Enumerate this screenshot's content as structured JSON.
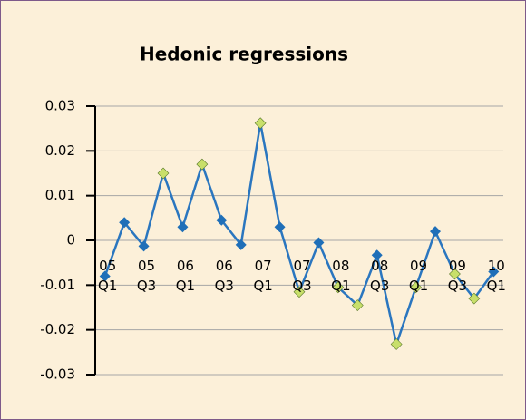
{
  "chart_data": {
    "type": "line",
    "title": "Hedonic regressions",
    "categories": [
      "05 Q1",
      null,
      "05 Q3",
      null,
      "06 Q1",
      null,
      "06 Q3",
      null,
      "07 Q1",
      null,
      "07 Q3",
      null,
      "08 Q1",
      null,
      "08 Q3",
      null,
      "09 Q1",
      null,
      "09 Q3",
      null,
      "10 Q1"
    ],
    "series": [
      {
        "color": "#2a76bf",
        "marker_colors": [
          "#1f6fb8",
          "#1f6fb8",
          "#1f6fb8",
          "#c8df6a",
          "#1f6fb8",
          "#c8df6a",
          "#1f6fb8",
          "#1f6fb8",
          "#c8df6a",
          "#1f6fb8",
          "#c8df6a",
          "#1f6fb8",
          "#c8df6a",
          "#c8df6a",
          "#1f6fb8",
          "#c8df6a",
          "#c8df6a",
          "#1f6fb8",
          "#c8df6a",
          "#c8df6a",
          "#1f6fb8"
        ],
        "values": [
          -0.008,
          0.004,
          -0.0013,
          0.015,
          0.003,
          0.017,
          0.0045,
          -0.001,
          0.0262,
          0.003,
          -0.0115,
          -0.0005,
          -0.0105,
          -0.0145,
          -0.0033,
          -0.0232,
          -0.0105,
          0.002,
          -0.0075,
          -0.013,
          -0.007
        ]
      }
    ],
    "ylim": [
      -0.03,
      0.03
    ],
    "yticks": [
      0.03,
      0.02,
      0.01,
      0,
      -0.01,
      -0.02,
      -0.03
    ],
    "grid": true
  }
}
